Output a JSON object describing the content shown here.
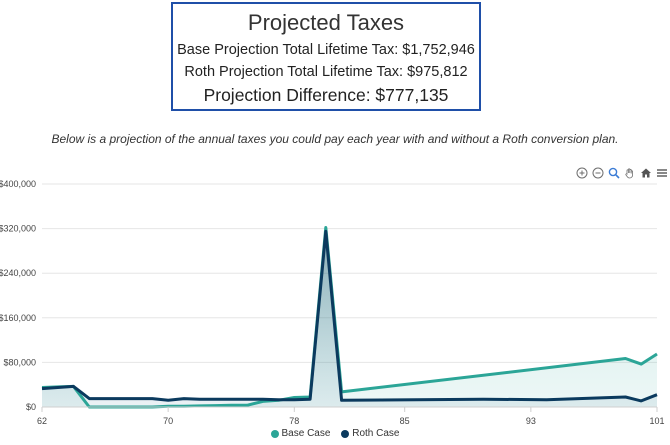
{
  "summary": {
    "title": "Projected Taxes",
    "base_line": "Base Projection Total Lifetime Tax: $1,752,946",
    "roth_line": "Roth Projection Total Lifetime Tax: $975,812",
    "difference_line": "Projection Difference: $777,135"
  },
  "subtitle": "Below is a projection of the annual taxes you could pay each year with and without a Roth conversion plan.",
  "toolbar": {
    "zoom_in_icon": "plus-circle",
    "zoom_out_icon": "minus-circle",
    "zoom_select_icon": "magnifier",
    "pan_icon": "hand",
    "reset_icon": "home",
    "menu_icon": "hamburger"
  },
  "colors": {
    "base": "#2ba597",
    "roth": "#0b3a5e",
    "grid": "#e6e6e6",
    "box_border": "#1f4fa8"
  },
  "chart_data": {
    "type": "area",
    "x_tick_labels": [
      "62",
      "70",
      "78",
      "85",
      "93",
      "101"
    ],
    "xlim": [
      62,
      101
    ],
    "ylim": [
      0,
      400000
    ],
    "y_tick_values": [
      0,
      80000,
      160000,
      240000,
      320000,
      400000
    ],
    "y_tick_labels": [
      "$0",
      "$80,000",
      "$160,000",
      "$240,000",
      "$320,000",
      "$400,000"
    ],
    "grid": true,
    "legend_position": "bottom-center",
    "series": [
      {
        "name": "Base Case",
        "color": "#2ba597",
        "x": [
          62,
          63,
          64,
          65,
          66,
          67,
          68,
          69,
          70,
          71,
          72,
          73,
          74,
          75,
          76,
          77,
          78,
          79,
          80,
          81,
          99,
          100,
          101
        ],
        "y": [
          35000,
          36000,
          37000,
          0,
          0,
          0,
          0,
          0,
          1500,
          1500,
          2000,
          2500,
          3000,
          3000,
          10000,
          12000,
          17000,
          18000,
          322000,
          27000,
          87000,
          77000,
          95000
        ]
      },
      {
        "name": "Roth Case",
        "color": "#0b3a5e",
        "x": [
          62,
          63,
          64,
          65,
          66,
          67,
          68,
          69,
          70,
          71,
          72,
          73,
          74,
          75,
          76,
          77,
          78,
          79,
          80,
          81,
          90,
          94,
          99,
          100,
          101
        ],
        "y": [
          33000,
          35000,
          37000,
          15000,
          15000,
          15000,
          15000,
          15000,
          12000,
          15000,
          14000,
          14000,
          14000,
          14000,
          14000,
          13000,
          13000,
          14000,
          315000,
          12000,
          14000,
          13000,
          18000,
          11000,
          22000
        ]
      }
    ]
  }
}
